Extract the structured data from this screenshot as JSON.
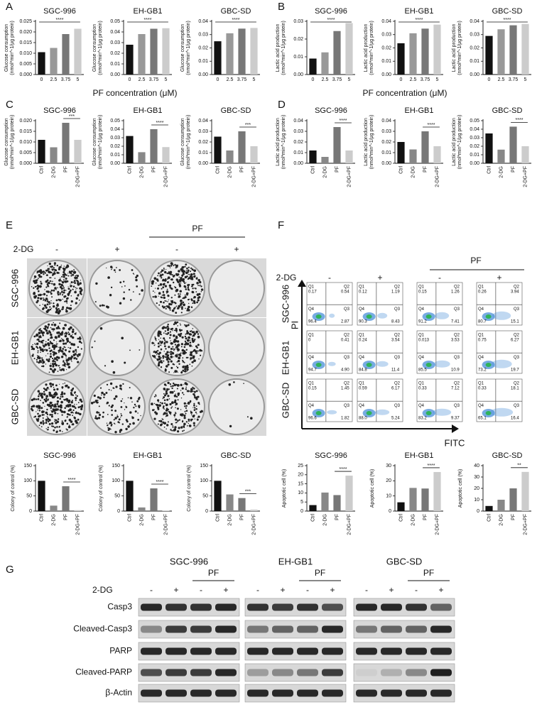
{
  "chart_data": [
    {
      "type": "bar",
      "title": "SGC-996",
      "ylabel": [
        "Glucose consumption",
        "(nmol*min^-1/μg protein)"
      ],
      "categories": [
        "0",
        "2.5",
        "3.75",
        "5"
      ],
      "values": [
        0.0105,
        0.0125,
        0.019,
        0.0215
      ],
      "colors": [
        "#111111",
        "#999999",
        "#777777",
        "#cccccc"
      ],
      "ylim": [
        0,
        0.025
      ],
      "yticks": [
        {
          "value": 0,
          "label": "0.000"
        },
        {
          "value": 0.005,
          "label": "0.005"
        },
        {
          "value": 0.01,
          "label": "0.010"
        },
        {
          "value": 0.015,
          "label": "0.015"
        },
        {
          "value": 0.02,
          "label": "0.020"
        },
        {
          "value": 0.025,
          "label": "0.025"
        }
      ],
      "annotation": "****",
      "annotation_span": [
        0,
        3
      ]
    },
    {
      "type": "bar",
      "title": "EH-GB1",
      "ylabel": [
        "Glucose consumption",
        "(nmol*min^-1/μg protein)"
      ],
      "categories": [
        "0",
        "2.5",
        "3.75",
        "5"
      ],
      "values": [
        0.028,
        0.038,
        0.043,
        0.0435
      ],
      "colors": [
        "#111111",
        "#999999",
        "#777777",
        "#cccccc"
      ],
      "ylim": [
        0,
        0.05
      ],
      "yticks": [
        {
          "value": 0,
          "label": "0.00"
        },
        {
          "value": 0.01,
          "label": "0.01"
        },
        {
          "value": 0.02,
          "label": "0.02"
        },
        {
          "value": 0.03,
          "label": "0.03"
        },
        {
          "value": 0.04,
          "label": "0.04"
        },
        {
          "value": 0.05,
          "label": "0.05"
        }
      ],
      "annotation": "****",
      "annotation_span": [
        0,
        3
      ]
    },
    {
      "type": "bar",
      "title": "GBC-SD",
      "ylabel": [
        "Glucose consumption",
        "(nmol*min^-1/μg protein)"
      ],
      "categories": [
        "0",
        "2.5",
        "3.75",
        "5"
      ],
      "values": [
        0.025,
        0.031,
        0.0345,
        0.035
      ],
      "colors": [
        "#111111",
        "#999999",
        "#777777",
        "#cccccc"
      ],
      "ylim": [
        0,
        0.04
      ],
      "yticks": [
        {
          "value": 0,
          "label": "0.00"
        },
        {
          "value": 0.01,
          "label": "0.01"
        },
        {
          "value": 0.02,
          "label": "0.02"
        },
        {
          "value": 0.03,
          "label": "0.03"
        },
        {
          "value": 0.04,
          "label": "0.04"
        }
      ],
      "annotation": "****",
      "annotation_span": [
        0,
        3
      ]
    },
    {
      "type": "bar",
      "title": "SGC-996",
      "ylabel": [
        "Lactic acid production",
        "(nmol*min^-1/μg protein)"
      ],
      "categories": [
        "0",
        "2.5",
        "3.75",
        "5"
      ],
      "values": [
        0.009,
        0.0125,
        0.0245,
        0.029
      ],
      "colors": [
        "#111111",
        "#999999",
        "#777777",
        "#cccccc"
      ],
      "ylim": [
        0,
        0.03
      ],
      "yticks": [
        {
          "value": 0,
          "label": "0.00"
        },
        {
          "value": 0.01,
          "label": "0.01"
        },
        {
          "value": 0.02,
          "label": "0.02"
        },
        {
          "value": 0.03,
          "label": "0.03"
        }
      ],
      "annotation": "****",
      "annotation_span": [
        0,
        3
      ]
    },
    {
      "type": "bar",
      "title": "EH-GB1",
      "ylabel": [
        "Lactic acid production",
        "(nmol*min^-1/μg protein)"
      ],
      "categories": [
        "0",
        "2.5",
        "3.75",
        "5"
      ],
      "values": [
        0.0235,
        0.031,
        0.0345,
        0.0375
      ],
      "colors": [
        "#111111",
        "#999999",
        "#777777",
        "#cccccc"
      ],
      "ylim": [
        0,
        0.04
      ],
      "yticks": [
        {
          "value": 0,
          "label": "0.00"
        },
        {
          "value": 0.01,
          "label": "0.01"
        },
        {
          "value": 0.02,
          "label": "0.02"
        },
        {
          "value": 0.03,
          "label": "0.03"
        },
        {
          "value": 0.04,
          "label": "0.04"
        }
      ],
      "annotation": "****",
      "annotation_span": [
        0,
        3
      ]
    },
    {
      "type": "bar",
      "title": "GBC-SD",
      "ylabel": [
        "Lactic acid production",
        "(nmol*min^-1/μg protein)"
      ],
      "categories": [
        "0",
        "2.5",
        "3.75",
        "5"
      ],
      "values": [
        0.029,
        0.034,
        0.037,
        0.038
      ],
      "colors": [
        "#111111",
        "#999999",
        "#777777",
        "#cccccc"
      ],
      "ylim": [
        0,
        0.04
      ],
      "yticks": [
        {
          "value": 0,
          "label": "0.00"
        },
        {
          "value": 0.01,
          "label": "0.01"
        },
        {
          "value": 0.02,
          "label": "0.02"
        },
        {
          "value": 0.03,
          "label": "0.03"
        },
        {
          "value": 0.04,
          "label": "0.04"
        }
      ],
      "annotation": "****",
      "annotation_span": [
        0,
        3
      ]
    },
    {
      "type": "bar",
      "title": "SGC-996",
      "ylabel": [
        "Glucose consumption",
        "(nmol*min^-1/μg protein)"
      ],
      "categories": [
        "Ctrl",
        "2-DG",
        "PF",
        "2-DG+PF"
      ],
      "values": [
        0.011,
        0.0075,
        0.019,
        0.011
      ],
      "colors": [
        "#111111",
        "#888888",
        "#777777",
        "#cccccc"
      ],
      "ylim": [
        0,
        0.02
      ],
      "yticks": [
        {
          "value": 0,
          "label": "0.000"
        },
        {
          "value": 0.005,
          "label": "0.005"
        },
        {
          "value": 0.01,
          "label": "0.010"
        },
        {
          "value": 0.015,
          "label": "0.015"
        },
        {
          "value": 0.02,
          "label": "0.020"
        }
      ],
      "annotation": "***",
      "annotation_span": [
        2,
        3
      ]
    },
    {
      "type": "bar",
      "title": "EH-GB1",
      "ylabel": [
        "Glucose consumption",
        "(nmol*min^-1/μg protein)"
      ],
      "categories": [
        "Ctrl",
        "2-DG",
        "PF",
        "2-DG+PF"
      ],
      "values": [
        0.032,
        0.013,
        0.04,
        0.019
      ],
      "colors": [
        "#111111",
        "#888888",
        "#777777",
        "#cccccc"
      ],
      "ylim": [
        0,
        0.05
      ],
      "yticks": [
        {
          "value": 0,
          "label": "0.00"
        },
        {
          "value": 0.01,
          "label": "0.01"
        },
        {
          "value": 0.02,
          "label": "0.02"
        },
        {
          "value": 0.03,
          "label": "0.03"
        },
        {
          "value": 0.04,
          "label": "0.04"
        },
        {
          "value": 0.05,
          "label": "0.05"
        }
      ],
      "annotation": "****",
      "annotation_span": [
        2,
        3
      ]
    },
    {
      "type": "bar",
      "title": "GBC-SD",
      "ylabel": [
        "Glucose consumption",
        "(nmol*min^-1/μg protein)"
      ],
      "categories": [
        "Ctrl",
        "2-DG",
        "PF",
        "2-DG+PF"
      ],
      "values": [
        0.025,
        0.012,
        0.03,
        0.016
      ],
      "colors": [
        "#111111",
        "#888888",
        "#777777",
        "#cccccc"
      ],
      "ylim": [
        0,
        0.04
      ],
      "yticks": [
        {
          "value": 0,
          "label": "0.00"
        },
        {
          "value": 0.01,
          "label": "0.01"
        },
        {
          "value": 0.02,
          "label": "0.02"
        },
        {
          "value": 0.03,
          "label": "0.03"
        },
        {
          "value": 0.04,
          "label": "0.04"
        }
      ],
      "annotation": "***",
      "annotation_span": [
        2,
        3
      ]
    },
    {
      "type": "bar",
      "title": "SGC-996",
      "ylabel": [
        "Lactic acid production",
        "(nmol*min^-1/μg protein)"
      ],
      "categories": [
        "Ctrl",
        "2-DG",
        "PF",
        "2-DG+PF"
      ],
      "values": [
        0.012,
        0.006,
        0.034,
        0.012
      ],
      "colors": [
        "#111111",
        "#888888",
        "#777777",
        "#cccccc"
      ],
      "ylim": [
        0,
        0.04
      ],
      "yticks": [
        {
          "value": 0,
          "label": "0.00"
        },
        {
          "value": 0.01,
          "label": "0.01"
        },
        {
          "value": 0.02,
          "label": "0.02"
        },
        {
          "value": 0.03,
          "label": "0.03"
        },
        {
          "value": 0.04,
          "label": "0.04"
        }
      ],
      "annotation": "****",
      "annotation_span": [
        2,
        3
      ]
    },
    {
      "type": "bar",
      "title": "EH-GB1",
      "ylabel": [
        "Lactic acid production",
        "(nmol*min^-1/μg protein)"
      ],
      "categories": [
        "Ctrl",
        "2-DG",
        "PF",
        "2-DG+PF"
      ],
      "values": [
        0.02,
        0.013,
        0.03,
        0.016
      ],
      "colors": [
        "#111111",
        "#888888",
        "#777777",
        "#cccccc"
      ],
      "ylim": [
        0,
        0.04
      ],
      "yticks": [
        {
          "value": 0,
          "label": "0.00"
        },
        {
          "value": 0.01,
          "label": "0.01"
        },
        {
          "value": 0.02,
          "label": "0.02"
        },
        {
          "value": 0.03,
          "label": "0.03"
        },
        {
          "value": 0.04,
          "label": "0.04"
        }
      ],
      "annotation": "****",
      "annotation_span": [
        2,
        3
      ]
    },
    {
      "type": "bar",
      "title": "GBC-SD",
      "ylabel": [
        "Lactic acid production",
        "(nmol*min^-1/μg protein)"
      ],
      "categories": [
        "Ctrl",
        "2-DG",
        "PF",
        "2-DG+PF"
      ],
      "values": [
        0.035,
        0.016,
        0.043,
        0.02
      ],
      "colors": [
        "#111111",
        "#888888",
        "#777777",
        "#cccccc"
      ],
      "ylim": [
        0,
        0.05
      ],
      "yticks": [
        {
          "value": 0,
          "label": "0.00"
        },
        {
          "value": 0.01,
          "label": "0.01"
        },
        {
          "value": 0.02,
          "label": "0.02"
        },
        {
          "value": 0.03,
          "label": "0.03"
        },
        {
          "value": 0.04,
          "label": "0.04"
        },
        {
          "value": 0.05,
          "label": "0.05"
        }
      ],
      "annotation": "****",
      "annotation_span": [
        2,
        3
      ]
    },
    {
      "type": "bar",
      "title": "SGC-996",
      "ylabel": [
        "Colony of control (%)"
      ],
      "categories": [
        "Ctrl",
        "2-DG",
        "PF",
        "2-DG+PF"
      ],
      "values": [
        100,
        18,
        82,
        3
      ],
      "colors": [
        "#111111",
        "#888888",
        "#777777",
        "#cccccc"
      ],
      "ylim": [
        0,
        150
      ],
      "yticks": [
        0,
        50,
        100,
        150
      ],
      "annotation": "****",
      "annotation_span": [
        2,
        3
      ]
    },
    {
      "type": "bar",
      "title": "EH-GB1",
      "ylabel": [
        "Colony of control (%)"
      ],
      "categories": [
        "Ctrl",
        "2-DG",
        "PF",
        "2-DG+PF"
      ],
      "values": [
        100,
        12,
        75,
        2
      ],
      "colors": [
        "#111111",
        "#888888",
        "#777777",
        "#cccccc"
      ],
      "ylim": [
        0,
        150
      ],
      "yticks": [
        0,
        50,
        100,
        150
      ],
      "annotation": "****",
      "annotation_span": [
        2,
        3
      ]
    },
    {
      "type": "bar",
      "title": "GBC-SD",
      "ylabel": [
        "Colony of control (%)"
      ],
      "categories": [
        "Ctrl",
        "2-DG",
        "PF",
        "2-DG+PF"
      ],
      "values": [
        100,
        55,
        43,
        5
      ],
      "colors": [
        "#111111",
        "#888888",
        "#777777",
        "#cccccc"
      ],
      "ylim": [
        0,
        150
      ],
      "yticks": [
        0,
        50,
        100,
        150
      ],
      "annotation": "***",
      "annotation_span": [
        2,
        3
      ]
    },
    {
      "type": "bar",
      "title": "SGC-996",
      "ylabel": [
        "Apoptotic cell (%)"
      ],
      "categories": [
        "Ctrl",
        "2-DG",
        "PF",
        "2-DG+PF"
      ],
      "values": [
        3.3,
        10.2,
        8.8,
        19.5
      ],
      "colors": [
        "#111111",
        "#888888",
        "#777777",
        "#cccccc"
      ],
      "ylim": [
        0,
        25
      ],
      "yticks": [
        0,
        5,
        10,
        15,
        20,
        25
      ],
      "annotation": "****",
      "annotation_span": [
        2,
        3
      ]
    },
    {
      "type": "bar",
      "title": "EH-GB1",
      "ylabel": [
        "Apoptotic cell (%)"
      ],
      "categories": [
        "Ctrl",
        "2-DG",
        "PF",
        "2-DG+PF"
      ],
      "values": [
        5.8,
        15.3,
        14.9,
        25.8
      ],
      "colors": [
        "#111111",
        "#888888",
        "#777777",
        "#cccccc"
      ],
      "ylim": [
        0,
        30
      ],
      "yticks": [
        0,
        10,
        20,
        30
      ],
      "annotation": "****",
      "annotation_span": [
        2,
        3
      ]
    },
    {
      "type": "bar",
      "title": "GBC-SD",
      "ylabel": [
        "Apoptotic cell (%)"
      ],
      "categories": [
        "Ctrl",
        "2-DG",
        "PF",
        "2-DG+PF"
      ],
      "values": [
        4.5,
        10,
        20,
        34.5
      ],
      "colors": [
        "#111111",
        "#888888",
        "#777777",
        "#cccccc"
      ],
      "ylim": [
        0,
        40
      ],
      "yticks": [
        0,
        10,
        20,
        30,
        40
      ],
      "annotation": "**",
      "annotation_span": [
        2,
        3
      ]
    }
  ],
  "panel_labels": [
    "A",
    "B",
    "C",
    "D",
    "E",
    "F",
    "G"
  ],
  "panel_a": {
    "xlabel": "PF concentration (μM)"
  },
  "panel_b": {
    "xlabel": "PF concentration (μM)"
  },
  "panel_e": {
    "treatment_label": "2-DG",
    "pf_label": "PF",
    "signs": [
      "-",
      "+",
      "-",
      "+"
    ],
    "rows": [
      "SGC-996",
      "EH-GB1",
      "GBC-SD"
    ]
  },
  "panel_f": {
    "treatment_label": "2-DG",
    "pf_label": "PF",
    "signs": [
      "-",
      "+",
      "-",
      "+"
    ],
    "rows": [
      "SGC-996",
      "EH-GB1",
      "GBC-SD"
    ],
    "y_axis": "PI",
    "x_axis": "FITC",
    "quadrant_names": [
      "Q1",
      "Q2",
      "Q3",
      "Q4"
    ],
    "plots": [
      [
        {
          "Q1": "0.17",
          "Q2": "0.54",
          "Q3": "2.87",
          "Q4": "96.4"
        },
        {
          "Q1": "0.12",
          "Q2": "1.19",
          "Q3": "8.43",
          "Q4": "90.3"
        },
        {
          "Q1": "0.15",
          "Q2": "1.26",
          "Q3": "7.41",
          "Q4": "91.2"
        },
        {
          "Q1": "0.26",
          "Q2": "3.94",
          "Q3": "15.1",
          "Q4": "80.7"
        }
      ],
      [
        {
          "Q1": "0",
          "Q2": "0.41",
          "Q3": "4.90",
          "Q4": "94.7"
        },
        {
          "Q1": "0.24",
          "Q2": "3.54",
          "Q3": "11.4",
          "Q4": "84.8"
        },
        {
          "Q1": "0.013",
          "Q2": "3.53",
          "Q3": "10.9",
          "Q4": "85.5"
        },
        {
          "Q1": "0.75",
          "Q2": "6.27",
          "Q3": "19.7",
          "Q4": "73.2"
        }
      ],
      [
        {
          "Q1": "0.15",
          "Q2": "1.45",
          "Q3": "1.82",
          "Q4": "96.6"
        },
        {
          "Q1": "0.59",
          "Q2": "6.17",
          "Q3": "5.24",
          "Q4": "88.0"
        },
        {
          "Q1": "0.33",
          "Q2": "7.12",
          "Q3": "9.37",
          "Q4": "83.2"
        },
        {
          "Q1": "0.33",
          "Q2": "18.1",
          "Q3": "16.4",
          "Q4": "65.1"
        }
      ]
    ]
  },
  "panel_g": {
    "cell_lines": [
      "SGC-996",
      "EH-GB1",
      "GBC-SD"
    ],
    "pf_label": "PF",
    "treatment_label": "2-DG",
    "signs": [
      "-",
      "+",
      "-",
      "+"
    ],
    "proteins": [
      "Casp3",
      "Cleaved-Casp3",
      "PARP",
      "Cleaved-PARP",
      "β-Actin"
    ]
  }
}
